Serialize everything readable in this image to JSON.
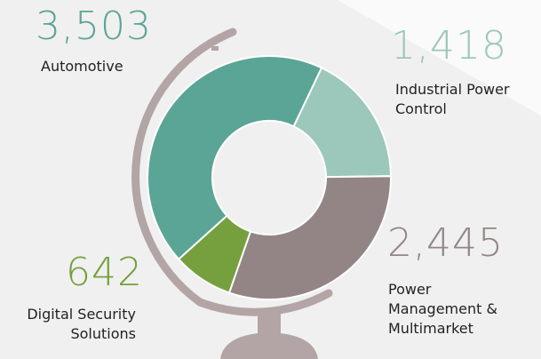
{
  "chart_data": {
    "type": "pie",
    "categories": [
      "Industrial Power Control",
      "Power Management & Multimarket",
      "Digital Security Solutions",
      "Automotive"
    ],
    "values": [
      1418,
      2445,
      642,
      3503
    ],
    "value_labels": [
      "1,418",
      "2,445",
      "642",
      "3,503"
    ],
    "colors": [
      "#9cc7bb",
      "#938586",
      "#76a03d",
      "#5ba596"
    ]
  }
}
